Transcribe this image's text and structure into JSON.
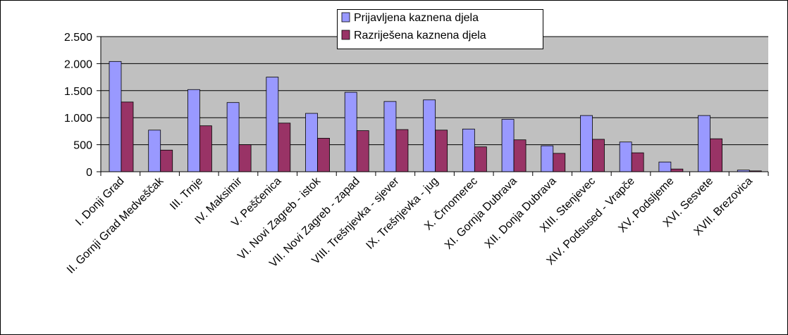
{
  "chart_data": {
    "type": "bar",
    "categories": [
      "I. Donji Grad",
      "II. Gornji Grad Medveščak",
      "III. Trnje",
      "IV. Maksimir",
      "V. Peščenica",
      "VI. Novi Zagreb - istok",
      "VII. Novi Zagreb - zapad",
      "VIII. Trešnjevka - sjever",
      "IX. Trešnjevka - jug",
      "X. Črnomerec",
      "XI. Gornja Dubrava",
      "XII. Donja Dubrava",
      "XIII. Stenjevec",
      "XIV. Podsused - Vrapče",
      "XV. Podsljeme",
      "XVI. Sesvete",
      "XVII. Brezovica"
    ],
    "series": [
      {
        "name": "Prijavljena kaznena djela",
        "color": "#9999ff",
        "values": [
          2040,
          770,
          1520,
          1280,
          1750,
          1080,
          1470,
          1300,
          1330,
          790,
          970,
          480,
          1040,
          550,
          180,
          1040,
          30
        ]
      },
      {
        "name": "Razriješena kaznena djela",
        "color": "#993366",
        "values": [
          1290,
          400,
          850,
          500,
          900,
          620,
          760,
          780,
          770,
          460,
          590,
          340,
          600,
          350,
          50,
          610,
          15
        ]
      }
    ],
    "ylim": [
      0,
      2500
    ],
    "yticks": [
      0,
      500,
      {
        "value": 1000,
        "label": "1.000"
      },
      {
        "value": 1500,
        "label": "1.500"
      },
      {
        "value": 2000,
        "label": "2.000"
      },
      {
        "value": 2500,
        "label": "2.500"
      }
    ],
    "grid": true,
    "legend": "top"
  }
}
